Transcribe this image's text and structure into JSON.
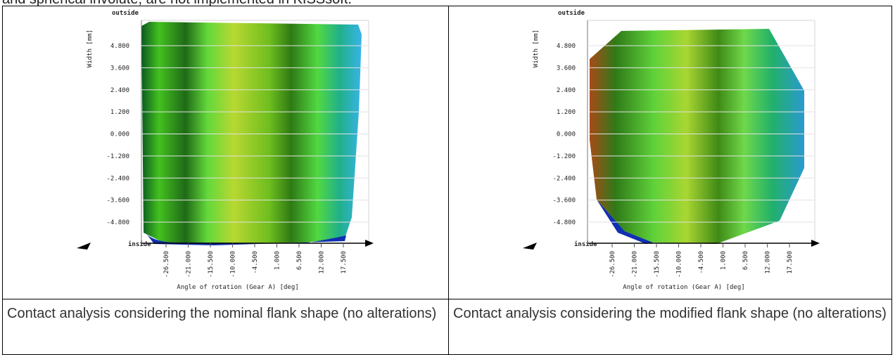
{
  "intro_text": "and spherical involute, are not implemented in KISSsoft.",
  "figures": [
    {
      "corner_label": "outside",
      "y_label": "Width [mm]",
      "y_ticks": [
        "4.800",
        "3.600",
        "2.400",
        "1.200",
        "0.000",
        "-1.200",
        "-2.400",
        "-3.600",
        "-4.800"
      ],
      "x_ticks": [
        "-26.500",
        "-21.000",
        "-15.500",
        "-10.000",
        "-4.500",
        "1.000",
        "6.500",
        "12.000",
        "17.500"
      ],
      "x_label": "Angle of rotation (Gear A) [deg]",
      "origin_label": "inside",
      "caption": "Contact analysis considering the nominal flank shape (no alterations)"
    },
    {
      "corner_label": "outside",
      "y_label": "Width [mm]",
      "y_ticks": [
        "4.800",
        "3.600",
        "2.400",
        "1.200",
        "0.000",
        "-1.200",
        "-2.400",
        "-3.600",
        "-4.800"
      ],
      "x_ticks": [
        "-26.500",
        "-21.000",
        "-15.500",
        "-10.000",
        "-4.500",
        "1.000",
        "6.500",
        "12.000",
        "17.500"
      ],
      "x_label": "Angle of rotation (Gear A) [deg]",
      "origin_label": "inside",
      "caption": "Contact analysis considering the modified flank shape (no alterations)"
    }
  ]
}
